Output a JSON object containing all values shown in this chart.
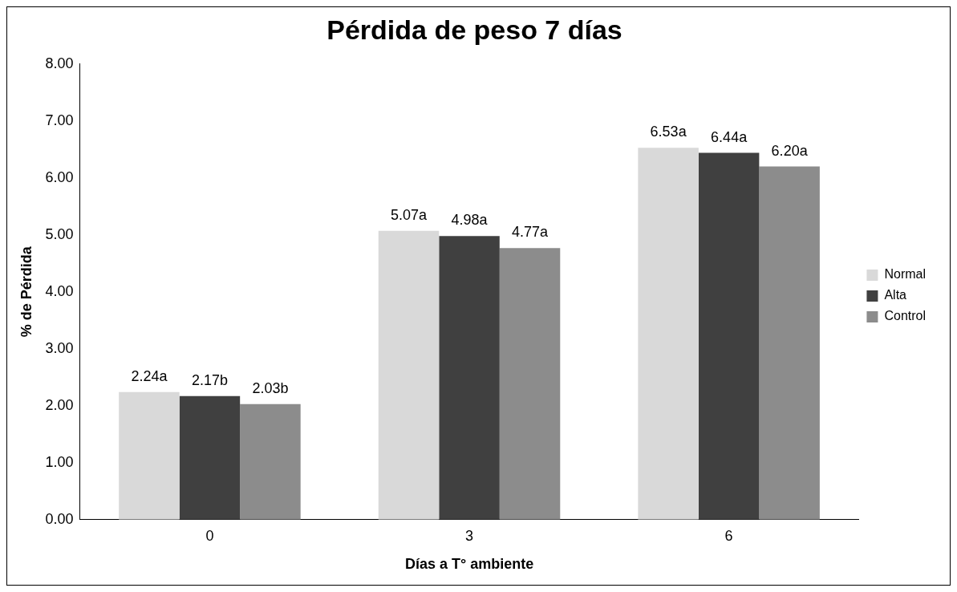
{
  "chart_data": {
    "type": "bar",
    "title": "Pérdida de peso 7 días",
    "xlabel": "Días a T° ambiente",
    "ylabel": "% de Pérdida",
    "categories": [
      "0",
      "3",
      "6"
    ],
    "series": [
      {
        "name": "Normal",
        "color": "#d9d9d9",
        "values": [
          2.24,
          5.07,
          6.53
        ],
        "value_labels": [
          "2.24a",
          "5.07a",
          "6.53a"
        ]
      },
      {
        "name": "Alta",
        "color": "#404040",
        "values": [
          2.17,
          4.98,
          6.44
        ],
        "value_labels": [
          "2.17b",
          "4.98a",
          "6.44a"
        ]
      },
      {
        "name": "Control",
        "color": "#8c8c8c",
        "values": [
          2.03,
          4.77,
          6.2
        ],
        "value_labels": [
          "2.03b",
          "4.77a",
          "6.20a"
        ]
      }
    ],
    "ylim": [
      0,
      8
    ],
    "yticks": [
      {
        "value": 0,
        "label": "0.00"
      },
      {
        "value": 1,
        "label": "1.00"
      },
      {
        "value": 2,
        "label": "2.00"
      },
      {
        "value": 3,
        "label": "3.00"
      },
      {
        "value": 4,
        "label": "4.00"
      },
      {
        "value": 5,
        "label": "5.00"
      },
      {
        "value": 6,
        "label": "6.00"
      },
      {
        "value": 7,
        "label": "7.00"
      },
      {
        "value": 8,
        "label": "8.00"
      }
    ],
    "grid": false,
    "legend": "right"
  }
}
